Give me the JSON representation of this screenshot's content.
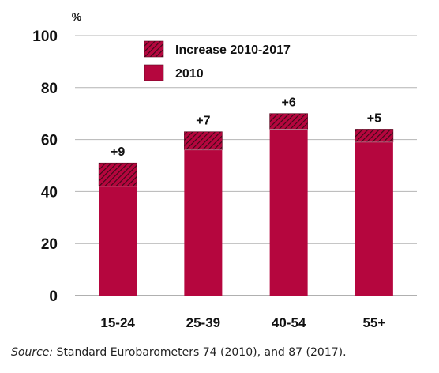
{
  "chart_data": {
    "type": "bar",
    "stacked": true,
    "y_unit_label": "%",
    "categories": [
      "15-24",
      "25-39",
      "40-54",
      "55+"
    ],
    "series": [
      {
        "name": "2010",
        "values": [
          42,
          56,
          64,
          59
        ],
        "color": "#b5063e",
        "pattern": "solid"
      },
      {
        "name": "Increase 2010-2017",
        "values": [
          9,
          7,
          6,
          5
        ],
        "color": "#b5063e",
        "pattern": "hatched"
      }
    ],
    "data_labels": [
      "+9",
      "+7",
      "+6",
      "+5"
    ],
    "ylim": [
      0,
      100
    ],
    "yticks": [
      "0",
      "20",
      "40",
      "60",
      "80",
      "100"
    ],
    "grid": true,
    "legend_position": "top-center",
    "legend": [
      {
        "label": "Increase 2010-2017",
        "pattern": "hatched"
      },
      {
        "label": "2010",
        "pattern": "solid"
      }
    ]
  },
  "source": {
    "prefix": "Source:",
    "text": " Standard Eurobarometers 74 (2010), and 87 (2017)."
  }
}
